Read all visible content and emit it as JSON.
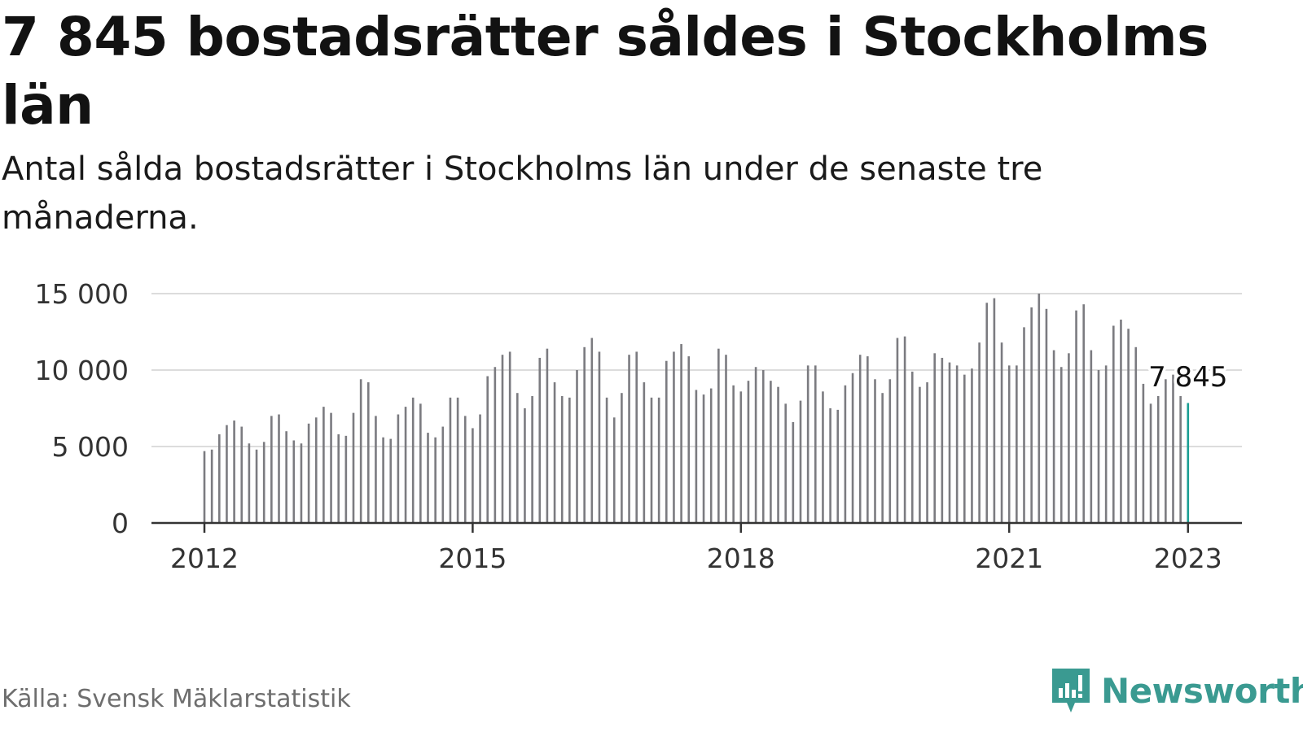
{
  "header": {
    "title": "7 845 bostadsrätter såldes i Stockholms län",
    "subtitle": "Antal sålda bostadsrätter i Stockholms län under de senaste tre månaderna."
  },
  "footer": {
    "source": "Källa: Svensk Mäklarstatistik",
    "brand": "Newsworthy",
    "brand_icon": "bar-chart-speech-bubble-icon"
  },
  "colors": {
    "bar": "#7b7b80",
    "highlight": "#1a9e93",
    "grid": "#dcdcdc",
    "axis": "#333333",
    "brand": "#3a9a91"
  },
  "chart_data": {
    "type": "bar",
    "x_start": "2012-01",
    "x_ticks": [
      "2012",
      "2015",
      "2018",
      "2021",
      "2023"
    ],
    "y_ticks": [
      "0",
      "5 000",
      "10 000",
      "15 000"
    ],
    "ylim": [
      0,
      15000
    ],
    "grid": true,
    "last_value_label": "7 845",
    "values": [
      4700,
      4800,
      5800,
      6400,
      6700,
      6300,
      5200,
      4800,
      5300,
      7000,
      7100,
      6000,
      5400,
      5200,
      6500,
      6900,
      7600,
      7200,
      5800,
      5700,
      7200,
      9400,
      9200,
      7000,
      5600,
      5500,
      7100,
      7600,
      8200,
      7800,
      5900,
      5600,
      6300,
      8200,
      8200,
      7000,
      6200,
      7100,
      9600,
      10200,
      11000,
      11200,
      8500,
      7500,
      8300,
      10800,
      11400,
      9200,
      8300,
      8200,
      10000,
      11500,
      12100,
      11200,
      8200,
      6900,
      8500,
      11000,
      11200,
      9200,
      8200,
      8200,
      10600,
      11200,
      11700,
      10900,
      8700,
      8400,
      8800,
      11400,
      11000,
      9000,
      8600,
      9300,
      10200,
      10000,
      9300,
      8900,
      7800,
      6600,
      8000,
      10300,
      10300,
      8600,
      7500,
      7400,
      9000,
      9800,
      11000,
      10900,
      9400,
      8500,
      9400,
      12100,
      12200,
      9900,
      8900,
      9200,
      11100,
      10800,
      10500,
      10300,
      9700,
      10100,
      11800,
      14400,
      14700,
      11800,
      10300,
      10300,
      12800,
      14100,
      15000,
      14000,
      11300,
      10200,
      11100,
      13900,
      14300,
      11300,
      10000,
      10300,
      12900,
      13300,
      12700,
      11500,
      9100,
      7800,
      8300,
      9400,
      9700,
      8300,
      7845
    ]
  }
}
